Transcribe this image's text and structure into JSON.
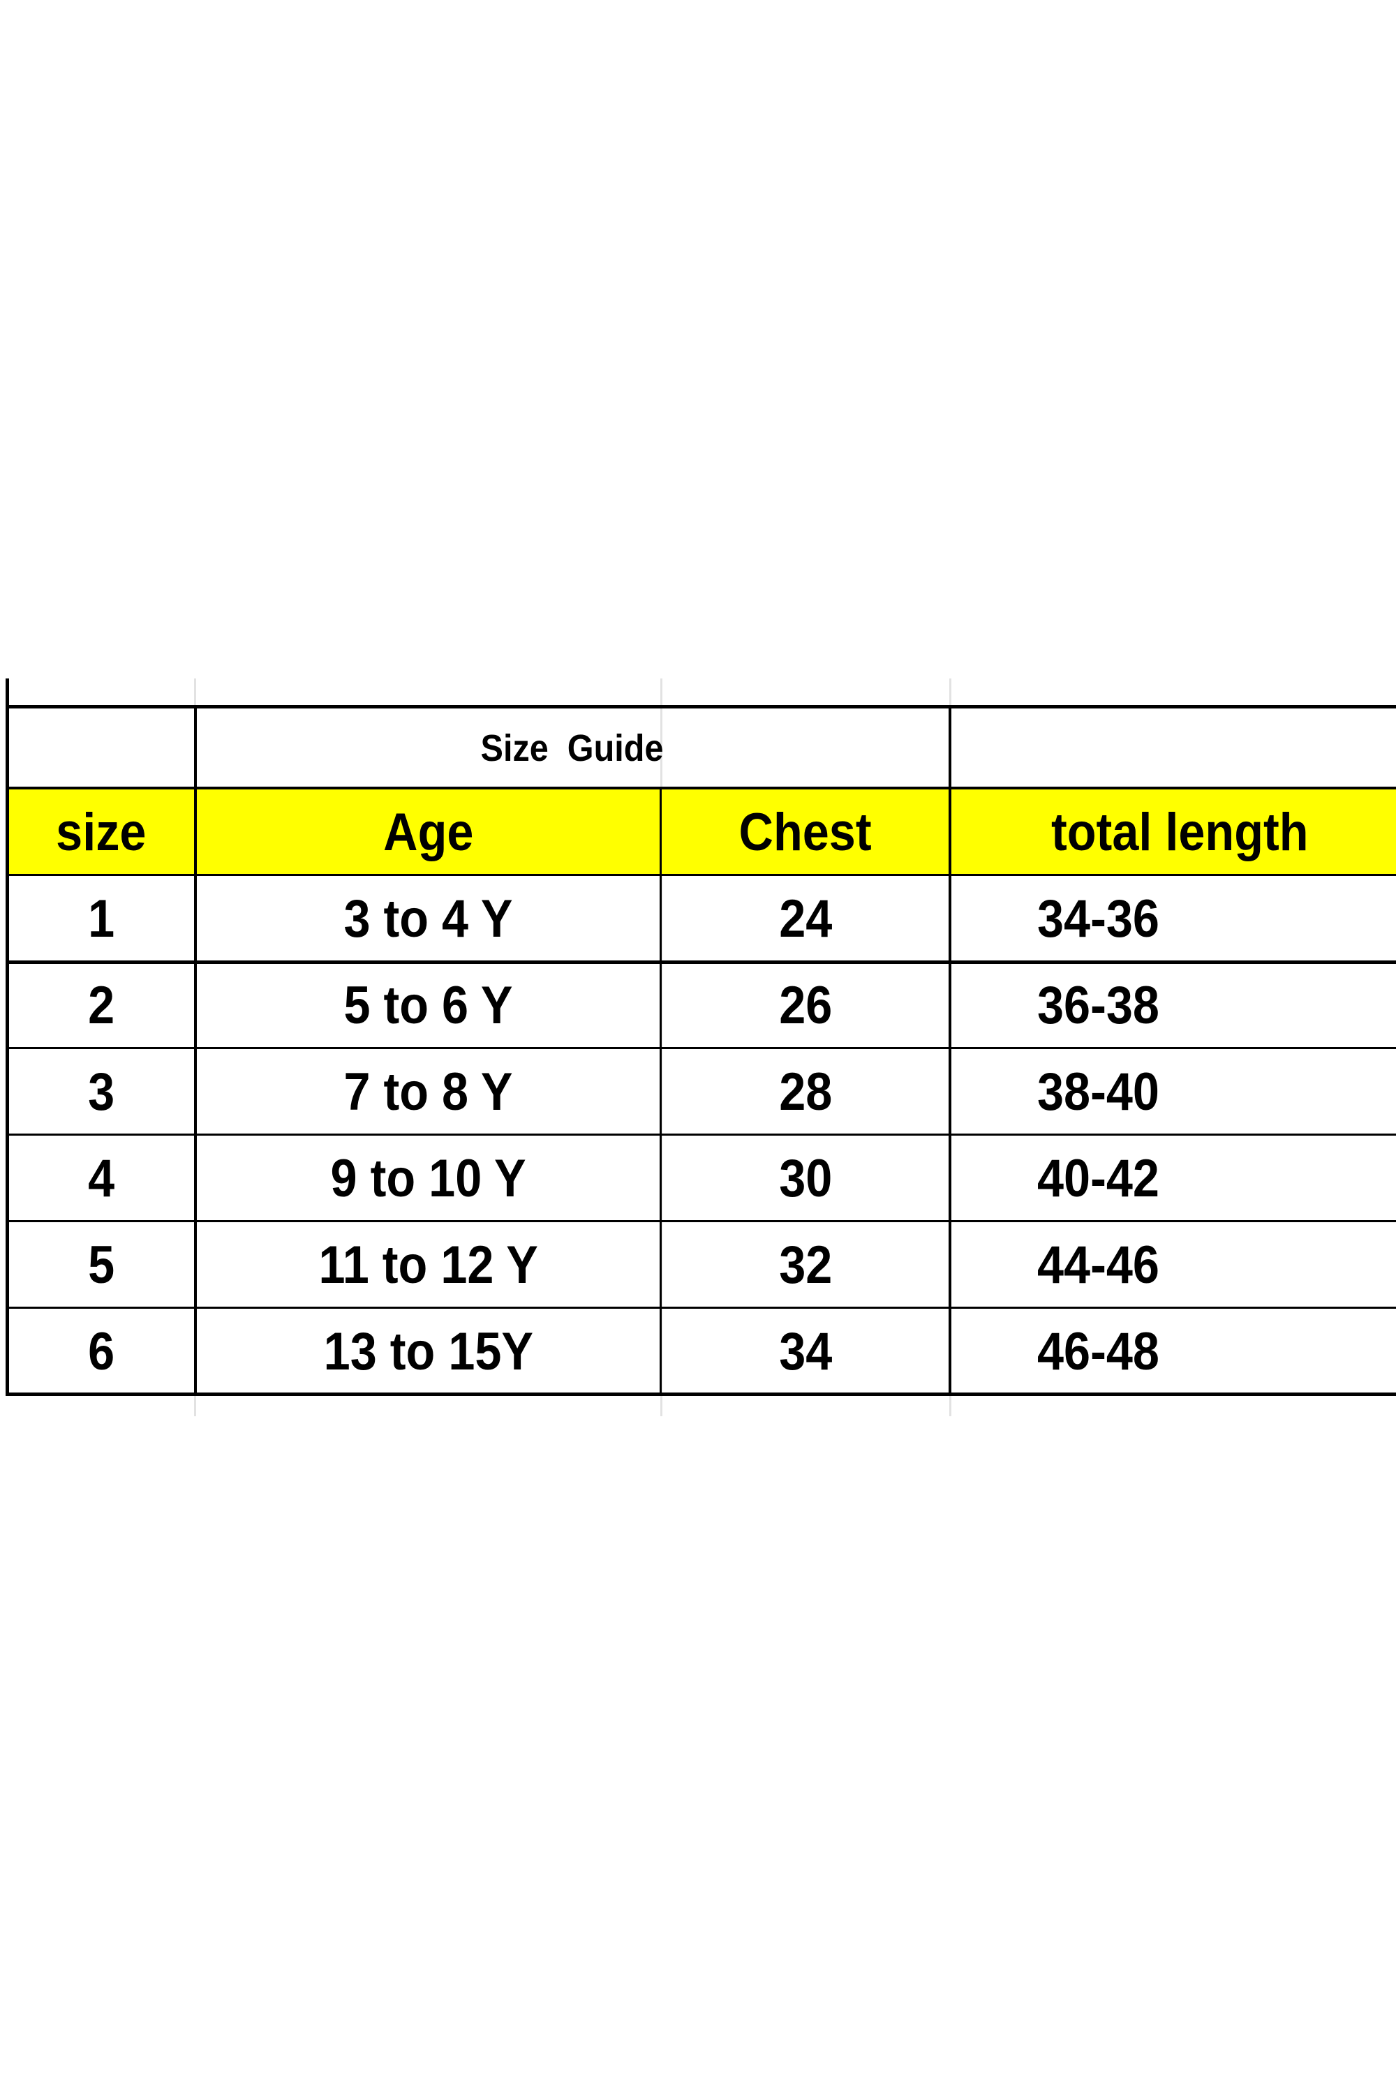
{
  "table": {
    "title": "Size  Guide",
    "header_color": "#ffff00",
    "columns": [
      "size",
      "Age",
      "Chest",
      "total length"
    ],
    "rows": [
      [
        "1",
        "3 to 4 Y",
        "24",
        "34-36"
      ],
      [
        "2",
        "5 to 6 Y",
        "26",
        "36-38"
      ],
      [
        "3",
        "7 to 8 Y",
        "28",
        "38-40"
      ],
      [
        "4",
        "9 to 10 Y",
        "30",
        "40-42"
      ],
      [
        "5",
        "11 to 12 Y",
        "32",
        "44-46"
      ],
      [
        "6",
        "13 to 15Y",
        "34",
        "46-48"
      ]
    ]
  }
}
